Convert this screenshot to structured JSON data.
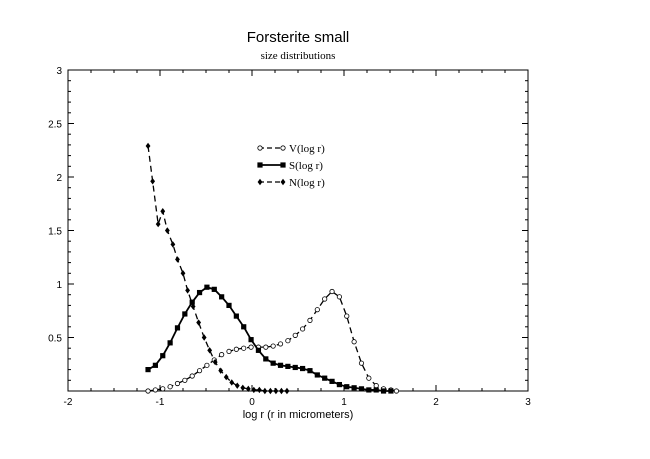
{
  "chart_data": {
    "type": "line",
    "title": "Forsterite small",
    "subtitle": "size distributions",
    "xlabel": "log r (r in micrometers)",
    "ylabel": "",
    "xlim": [
      -2,
      3
    ],
    "ylim": [
      0,
      3
    ],
    "xticks": [
      "-2",
      "-1",
      "0",
      "1",
      "2",
      "3"
    ],
    "yticks": [
      "0.5",
      "1",
      "1.5",
      "2",
      "2.5",
      "3"
    ],
    "grid": false,
    "legend_position": "top-center",
    "series": [
      {
        "name": "V(log r)",
        "line_style": "dashed",
        "marker": "open-circle",
        "color": "#000000",
        "x": [
          -1.13,
          -1.05,
          -0.97,
          -0.89,
          -0.81,
          -0.73,
          -0.65,
          -0.57,
          -0.49,
          -0.41,
          -0.33,
          -0.25,
          -0.17,
          -0.09,
          -0.01,
          0.07,
          0.15,
          0.23,
          0.31,
          0.39,
          0.47,
          0.55,
          0.63,
          0.71,
          0.79,
          0.87,
          0.95,
          1.03,
          1.11,
          1.19,
          1.27,
          1.35,
          1.43,
          1.51,
          1.57
        ],
        "y": [
          0.0,
          0.01,
          0.02,
          0.04,
          0.07,
          0.1,
          0.14,
          0.19,
          0.24,
          0.29,
          0.34,
          0.37,
          0.39,
          0.4,
          0.41,
          0.41,
          0.41,
          0.42,
          0.44,
          0.47,
          0.52,
          0.58,
          0.66,
          0.76,
          0.86,
          0.93,
          0.88,
          0.7,
          0.46,
          0.26,
          0.12,
          0.05,
          0.02,
          0.01,
          0.0
        ]
      },
      {
        "name": "S(log r)",
        "line_style": "solid",
        "marker": "filled-square",
        "color": "#000000",
        "x": [
          -1.13,
          -1.05,
          -0.97,
          -0.89,
          -0.81,
          -0.73,
          -0.65,
          -0.57,
          -0.49,
          -0.41,
          -0.33,
          -0.25,
          -0.17,
          -0.09,
          -0.01,
          0.07,
          0.15,
          0.23,
          0.31,
          0.39,
          0.47,
          0.55,
          0.63,
          0.71,
          0.79,
          0.87,
          0.95,
          1.03,
          1.11,
          1.19,
          1.27,
          1.35,
          1.43,
          1.51
        ],
        "y": [
          0.2,
          0.24,
          0.33,
          0.45,
          0.59,
          0.72,
          0.83,
          0.92,
          0.97,
          0.95,
          0.88,
          0.8,
          0.7,
          0.6,
          0.48,
          0.38,
          0.3,
          0.26,
          0.24,
          0.23,
          0.22,
          0.21,
          0.19,
          0.15,
          0.12,
          0.09,
          0.06,
          0.04,
          0.03,
          0.02,
          0.01,
          0.01,
          0.0,
          0.0
        ]
      },
      {
        "name": "N(log r)",
        "line_style": "dashed",
        "marker": "filled-diamond",
        "color": "#000000",
        "x": [
          -1.13,
          -1.08,
          -1.02,
          -0.97,
          -0.92,
          -0.86,
          -0.81,
          -0.75,
          -0.7,
          -0.64,
          -0.58,
          -0.52,
          -0.46,
          -0.4,
          -0.34,
          -0.28,
          -0.22,
          -0.16,
          -0.1,
          -0.04,
          0.02,
          0.08,
          0.14,
          0.2,
          0.26,
          0.32,
          0.38
        ],
        "y": [
          2.29,
          1.96,
          1.56,
          1.68,
          1.5,
          1.37,
          1.23,
          1.1,
          0.94,
          0.79,
          0.64,
          0.5,
          0.38,
          0.27,
          0.19,
          0.13,
          0.08,
          0.05,
          0.03,
          0.02,
          0.01,
          0.01,
          0.0,
          0.0,
          0.0,
          0.0,
          0.0
        ]
      }
    ]
  }
}
